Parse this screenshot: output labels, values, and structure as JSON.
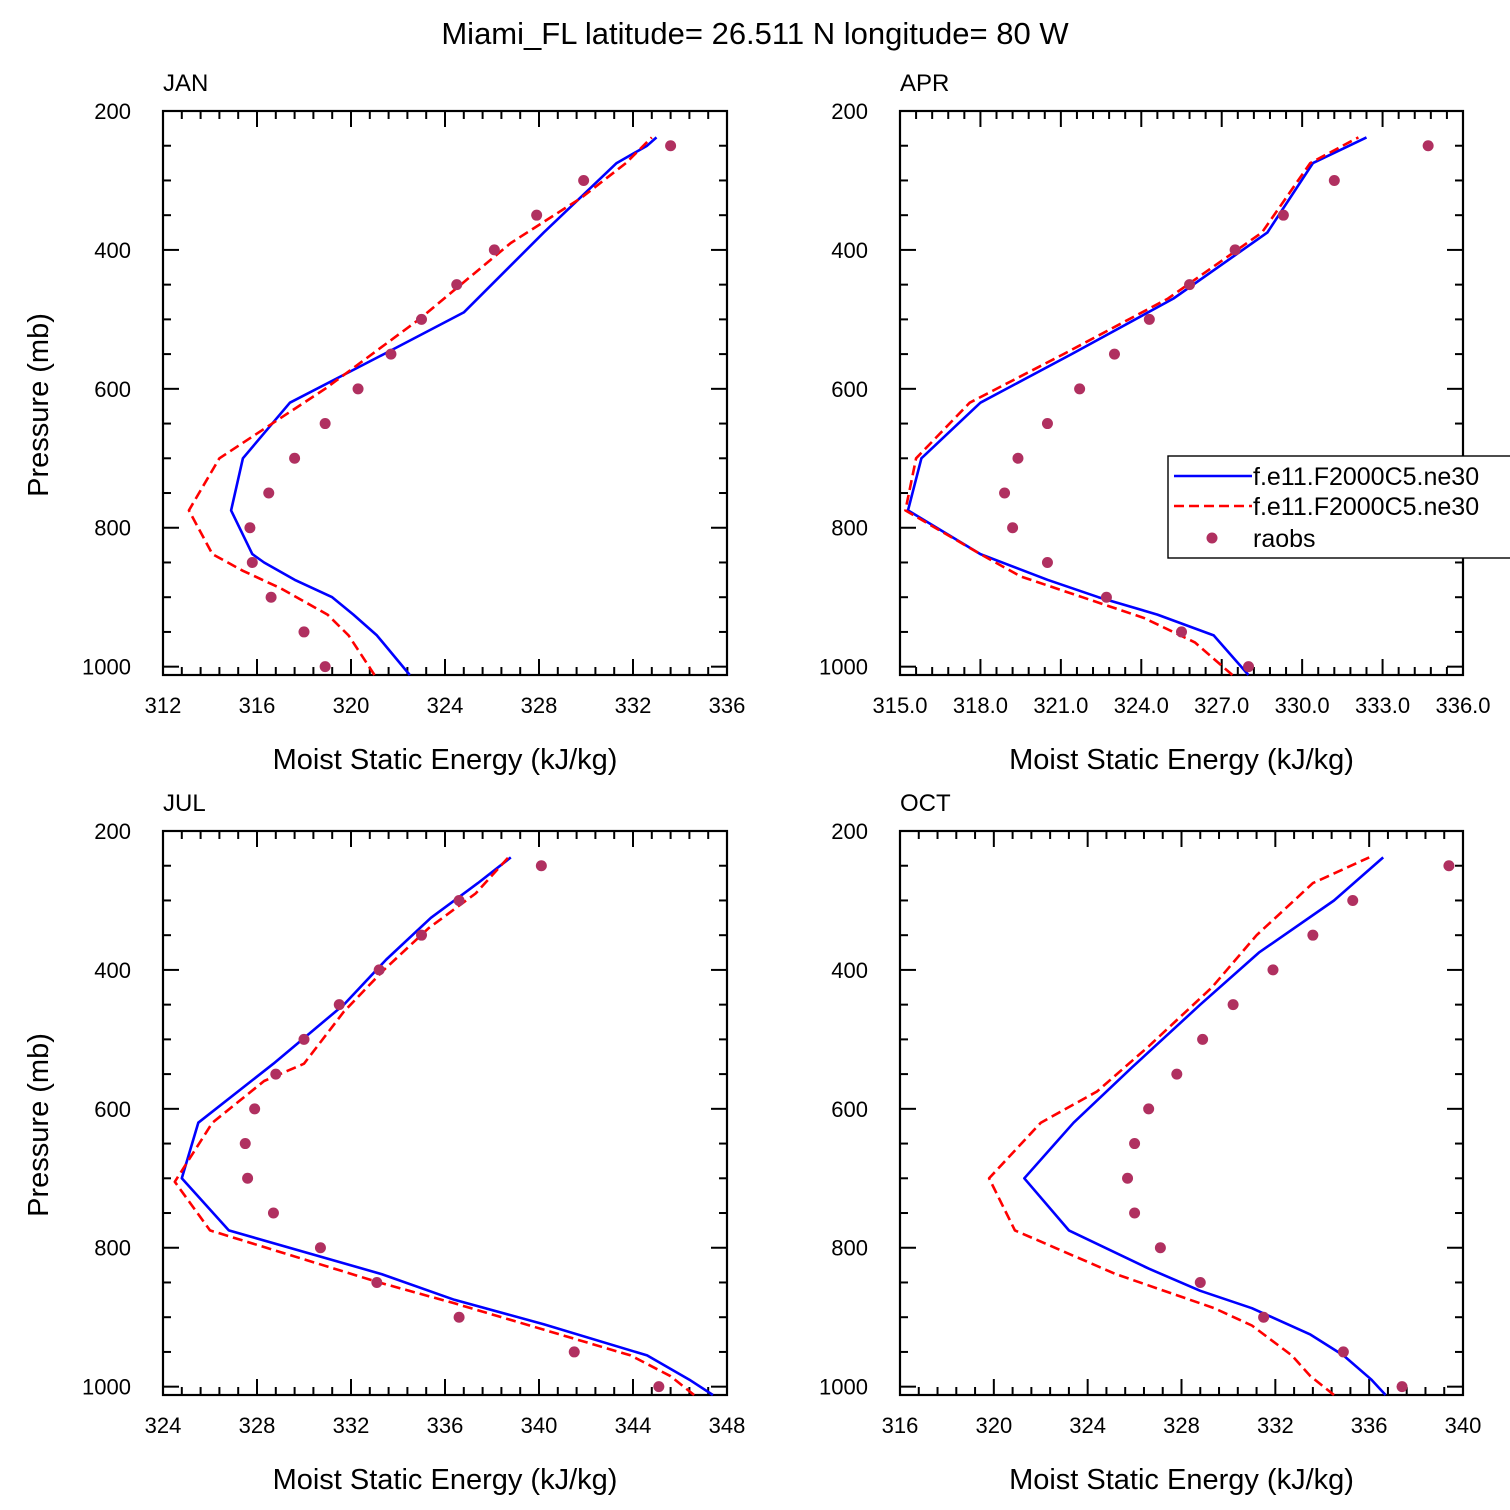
{
  "title": "Miami_FL  latitude= 26.511 N longitude= 80 W",
  "legend": {
    "position": "right of APR panel",
    "entries": [
      "f.e11.F2000C5.ne30",
      "f.e11.F2000C5.ne30",
      "raobs"
    ]
  },
  "colors": {
    "model_a": "#0000ff",
    "model_b": "#ff0000",
    "raobs": "#b03060"
  },
  "chart_data": [
    {
      "type": "line",
      "title": "JAN",
      "xlabel": "Moist Static Energy (kJ/kg)",
      "ylabel": "Pressure (mb)",
      "xlim": [
        312,
        336
      ],
      "ylim": [
        200,
        1012
      ],
      "xticks": [
        312,
        316,
        320,
        324,
        328,
        332,
        336
      ],
      "xtick_labels": [
        "312",
        "316",
        "320",
        "324",
        "328",
        "332",
        "336"
      ],
      "yticks": [
        200,
        400,
        600,
        800,
        1000
      ],
      "ytick_labels": [
        "200",
        "400",
        "600",
        "800",
        "1000"
      ],
      "series": [
        {
          "name": "f.e11.F2000C5.ne30",
          "style": "solid",
          "x": [
            322.5,
            321.1,
            320.1,
            319.2,
            317.6,
            316.3,
            315.8,
            314.9,
            315.4,
            317.4,
            319.4,
            321.4,
            324.8,
            328.2,
            331.3,
            332.6,
            333.0
          ],
          "y": [
            1012,
            955,
            925,
            900,
            875,
            850,
            838,
            775,
            700,
            620,
            585,
            550,
            490,
            375,
            275,
            250,
            238
          ]
        },
        {
          "name": "f.e11.F2000C5.ne30",
          "style": "dashed",
          "x": [
            321.0,
            319.9,
            319.0,
            317.0,
            315.4,
            314.1,
            313.1,
            314.4,
            318.9,
            322.9,
            326.8,
            329.8,
            331.7,
            332.8
          ],
          "y": [
            1012,
            955,
            925,
            887,
            862,
            838,
            775,
            700,
            600,
            500,
            390,
            325,
            275,
            238
          ]
        },
        {
          "name": "raobs",
          "style": "dots",
          "x": [
            318.9,
            318.0,
            316.6,
            315.8,
            315.7,
            316.5,
            317.6,
            318.9,
            320.3,
            321.7,
            323.0,
            324.5,
            326.1,
            327.9,
            329.9,
            333.6
          ],
          "y": [
            1000,
            950,
            900,
            850,
            800,
            750,
            700,
            650,
            600,
            550,
            500,
            450,
            400,
            350,
            300,
            250
          ]
        }
      ]
    },
    {
      "type": "line",
      "title": "APR",
      "xlabel": "Moist Static Energy (kJ/kg)",
      "ylabel": "",
      "xlim": [
        315.0,
        336.0
      ],
      "ylim": [
        200,
        1012
      ],
      "xticks": [
        315,
        318,
        321,
        324,
        327,
        330,
        333,
        336
      ],
      "xtick_labels": [
        "315.0",
        "318.0",
        "321.0",
        "324.0",
        "327.0",
        "330.0",
        "333.0",
        "336.0"
      ],
      "yticks": [
        200,
        400,
        600,
        800,
        1000
      ],
      "ytick_labels": [
        "200",
        "400",
        "600",
        "800",
        "1000"
      ],
      "series": [
        {
          "name": "f.e11.F2000C5.ne30",
          "style": "solid",
          "x": [
            328.0,
            326.7,
            324.6,
            322.4,
            320.5,
            318.0,
            315.3,
            315.8,
            318.0,
            321.4,
            325.2,
            328.7,
            330.4,
            332.4
          ],
          "y": [
            1012,
            955,
            925,
            900,
            875,
            838,
            775,
            700,
            620,
            550,
            470,
            375,
            275,
            238
          ]
        },
        {
          "name": "f.e11.F2000C5.ne30",
          "style": "dashed",
          "x": [
            327.4,
            326.0,
            324.1,
            321.8,
            319.5,
            318.0,
            315.2,
            315.6,
            317.6,
            321.1,
            325.0,
            328.5,
            330.3,
            332.1
          ],
          "y": [
            1012,
            965,
            930,
            900,
            870,
            838,
            775,
            700,
            620,
            550,
            470,
            375,
            275,
            238
          ]
        },
        {
          "name": "raobs",
          "style": "dots",
          "x": [
            328.0,
            325.5,
            322.7,
            320.5,
            319.2,
            318.9,
            319.4,
            320.5,
            321.7,
            323.0,
            324.3,
            325.8,
            327.5,
            329.3,
            331.2,
            334.7
          ],
          "y": [
            1000,
            950,
            900,
            850,
            800,
            750,
            700,
            650,
            600,
            550,
            500,
            450,
            400,
            350,
            300,
            250
          ]
        }
      ]
    },
    {
      "type": "line",
      "title": "JUL",
      "xlabel": "Moist Static Energy (kJ/kg)",
      "ylabel": "Pressure (mb)",
      "xlim": [
        324,
        348
      ],
      "ylim": [
        200,
        1012
      ],
      "xticks": [
        324,
        328,
        332,
        336,
        340,
        344,
        348
      ],
      "xtick_labels": [
        "324",
        "328",
        "332",
        "336",
        "340",
        "344",
        "348"
      ],
      "yticks": [
        200,
        400,
        600,
        800,
        1000
      ],
      "ytick_labels": [
        "200",
        "400",
        "600",
        "800",
        "1000"
      ],
      "series": [
        {
          "name": "f.e11.F2000C5.ne30",
          "style": "solid",
          "x": [
            347.4,
            346.4,
            344.6,
            340.2,
            336.4,
            333.3,
            326.8,
            324.8,
            325.5,
            328.7,
            331.7,
            333.5,
            335.4,
            337.4,
            338.8
          ],
          "y": [
            1012,
            990,
            955,
            910,
            875,
            838,
            775,
            700,
            620,
            535,
            450,
            385,
            325,
            275,
            238
          ]
        },
        {
          "name": "f.e11.F2000C5.ne30",
          "style": "dashed",
          "x": [
            346.6,
            345.6,
            343.9,
            339.6,
            336.4,
            333.2,
            326.0,
            324.5,
            326.1,
            328.3,
            330.0,
            331.7,
            333.4,
            335.3,
            337.3,
            338.7
          ],
          "y": [
            1012,
            985,
            955,
            912,
            880,
            850,
            775,
            705,
            620,
            560,
            535,
            460,
            400,
            340,
            290,
            238
          ]
        },
        {
          "name": "raobs",
          "style": "dots",
          "x": [
            345.1,
            341.5,
            336.6,
            333.1,
            330.7,
            328.7,
            327.6,
            327.5,
            327.9,
            328.8,
            330.0,
            331.5,
            333.2,
            335.0,
            336.6,
            340.1
          ],
          "y": [
            1000,
            950,
            900,
            850,
            800,
            750,
            700,
            650,
            600,
            550,
            500,
            450,
            400,
            350,
            300,
            250
          ]
        }
      ]
    },
    {
      "type": "line",
      "title": "OCT",
      "xlabel": "Moist Static Energy (kJ/kg)",
      "ylabel": "",
      "xlim": [
        316,
        340
      ],
      "ylim": [
        200,
        1012
      ],
      "xticks": [
        316,
        320,
        324,
        328,
        332,
        336,
        340
      ],
      "xtick_labels": [
        "316",
        "320",
        "324",
        "328",
        "332",
        "336",
        "340"
      ],
      "yticks": [
        200,
        400,
        600,
        800,
        1000
      ],
      "ytick_labels": [
        "200",
        "400",
        "600",
        "800",
        "1000"
      ],
      "series": [
        {
          "name": "f.e11.F2000C5.ne30",
          "style": "solid",
          "x": [
            336.7,
            336.1,
            334.9,
            333.5,
            331.0,
            328.8,
            326.6,
            323.2,
            321.3,
            323.4,
            325.9,
            328.8,
            331.3,
            334.5,
            336.6
          ],
          "y": [
            1012,
            990,
            955,
            925,
            887,
            862,
            830,
            775,
            700,
            620,
            540,
            450,
            375,
            300,
            238
          ]
        },
        {
          "name": "f.e11.F2000C5.ne30",
          "style": "dashed",
          "x": [
            334.5,
            333.5,
            332.7,
            331.0,
            329.4,
            325.2,
            320.9,
            319.8,
            322.0,
            324.4,
            326.6,
            329.3,
            331.2,
            333.6,
            336.0
          ],
          "y": [
            1012,
            985,
            955,
            912,
            887,
            838,
            775,
            700,
            620,
            575,
            510,
            425,
            350,
            275,
            238
          ]
        },
        {
          "name": "raobs",
          "style": "dots",
          "x": [
            337.4,
            334.9,
            331.5,
            328.8,
            327.1,
            326.0,
            325.7,
            326.0,
            326.6,
            327.8,
            328.9,
            330.2,
            331.9,
            333.6,
            335.3,
            339.4
          ],
          "y": [
            1000,
            950,
            900,
            850,
            800,
            750,
            700,
            650,
            600,
            550,
            500,
            450,
            400,
            350,
            300,
            250
          ]
        }
      ]
    }
  ]
}
